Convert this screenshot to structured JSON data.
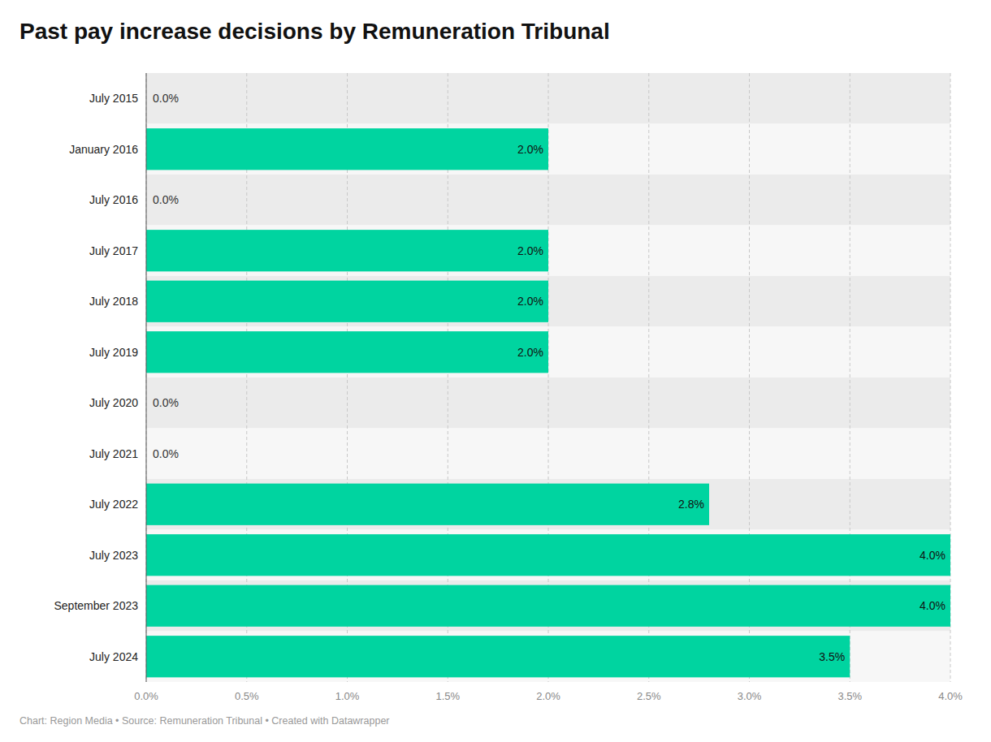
{
  "chart_data": {
    "type": "bar",
    "orientation": "horizontal",
    "title": "Past pay increase decisions by Remuneration Tribunal",
    "caption": "Chart: Region Media • Source: Remuneration Tribunal • Created with Datawrapper",
    "categories": [
      "July 2015",
      "January 2016",
      "July 2016",
      "July 2017",
      "July 2018",
      "July 2019",
      "July 2020",
      "July 2021",
      "July 2022",
      "July 2023",
      "September 2023",
      "July 2024"
    ],
    "values": [
      0.0,
      2.0,
      0.0,
      2.0,
      2.0,
      2.0,
      0.0,
      0.0,
      2.8,
      4.0,
      4.0,
      3.5
    ],
    "value_labels": [
      "0.0%",
      "2.0%",
      "0.0%",
      "2.0%",
      "2.0%",
      "2.0%",
      "0.0%",
      "0.0%",
      "2.8%",
      "4.0%",
      "4.0%",
      "3.5%"
    ],
    "color": "#00d4a0",
    "xlim": [
      0,
      4.0
    ],
    "xticks": [
      {
        "value": 0.0,
        "label": "0.0%"
      },
      {
        "value": 0.5,
        "label": "0.5%"
      },
      {
        "value": 1.0,
        "label": "1.0%"
      },
      {
        "value": 1.5,
        "label": "1.5%"
      },
      {
        "value": 2.0,
        "label": "2.0%"
      },
      {
        "value": 2.5,
        "label": "2.5%"
      },
      {
        "value": 3.0,
        "label": "3.0%"
      },
      {
        "value": 3.5,
        "label": "3.5%"
      },
      {
        "value": 4.0,
        "label": "4.0%"
      }
    ],
    "grid": true,
    "data_labels": true
  }
}
